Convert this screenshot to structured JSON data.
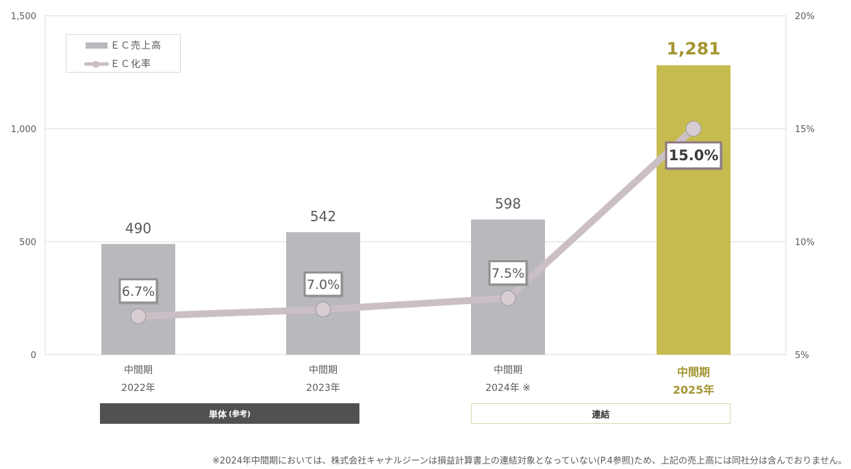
{
  "chart_data": {
    "type": "bar",
    "categories": [
      "中間期\n2022年",
      "中間期\n2023年",
      "中間期\n2024年 ※",
      "中間期\n2025年"
    ],
    "categories_line1": [
      "中間期",
      "中間期",
      "中間期",
      "中間期"
    ],
    "categories_line2": [
      "2022年",
      "2023年",
      "2024年 ※",
      "2025年"
    ],
    "series": [
      {
        "name": "ＥＣ売上高",
        "type": "bar",
        "axis": "left",
        "values": [
          490,
          542,
          598,
          1281
        ],
        "labels": [
          "490",
          "542",
          "598",
          "1,281"
        ]
      },
      {
        "name": "ＥＣ化率",
        "type": "line",
        "axis": "right",
        "values": [
          6.7,
          7.0,
          7.5,
          15.0
        ],
        "labels": [
          "6.7%",
          "7.0%",
          "7.5%",
          "15.0%"
        ]
      }
    ],
    "left_axis": {
      "ylim": [
        0,
        1500
      ],
      "ticks": [
        0,
        500,
        1000,
        1500
      ],
      "tick_labels": [
        "0",
        "500",
        "1,000",
        "1,500"
      ]
    },
    "right_axis": {
      "ylim": [
        5,
        20
      ],
      "ticks": [
        5,
        10,
        15,
        20
      ],
      "tick_labels": [
        "5%",
        "10%",
        "15%",
        "20%"
      ]
    },
    "highlight_index": 3,
    "grid": true,
    "legend_position": "top-left",
    "title": "",
    "xlabel": "",
    "ylabel": ""
  },
  "groups": {
    "standalone": "単体",
    "standalone_sub": "(参考)",
    "consolidated": "連結"
  },
  "footnote": "※2024年中間期においては、株式会社キャナルジーンは損益計算書上の連結対象となっていない(P.4参照)ため、上記の売上高には同社分は含んでおりません。",
  "colors": {
    "bar": "#b8b8bd",
    "bar_highlight": "#c6bb4f",
    "line": "#cbbfc6",
    "highlight_text": "#a39532",
    "group_dark": "#4f5153"
  }
}
